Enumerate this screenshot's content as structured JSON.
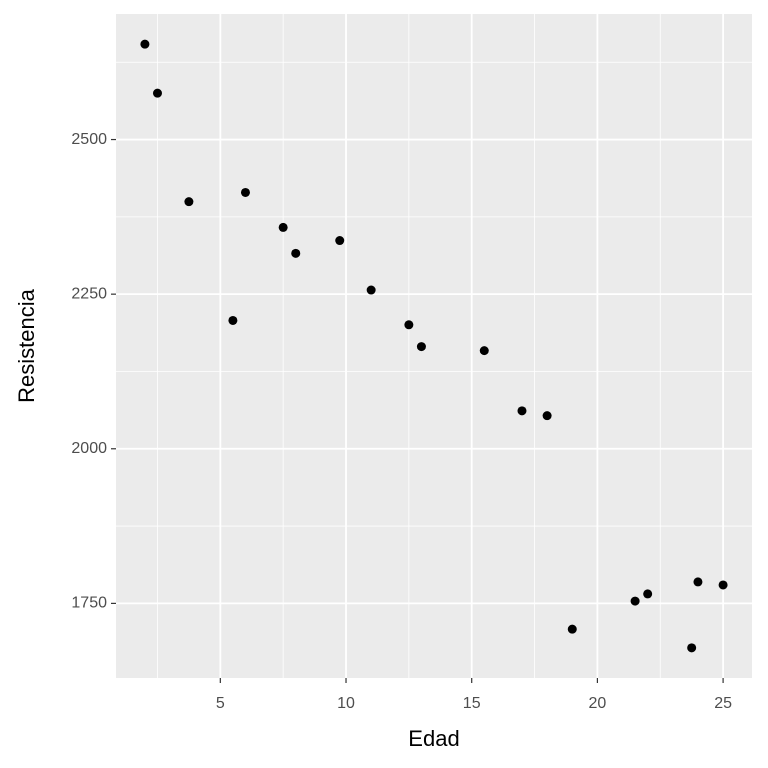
{
  "chart_data": {
    "type": "scatter",
    "x_label": "Edad",
    "y_label": "Resistencia",
    "series": [
      {
        "color": "#000000",
        "x": [
          15.5,
          23.75,
          8.0,
          17.0,
          5.5,
          19.0,
          24.0,
          2.5,
          7.5,
          11.0,
          13.0,
          3.75,
          25.0,
          9.75,
          22.0,
          18.0,
          6.0,
          12.5,
          2.0,
          21.5
        ],
        "values": [
          2158.7,
          1678.15,
          2316.0,
          2061.3,
          2207.5,
          1708.3,
          1784.7,
          2575.0,
          2357.9,
          2256.7,
          2165.2,
          2399.55,
          1779.8,
          2336.75,
          1765.3,
          2053.5,
          2414.4,
          2200.5,
          2654.2,
          1753.7
        ]
      }
    ],
    "xlim": [
      0.85,
      26.15
    ],
    "ylim": [
      1629.35,
      2703.0
    ],
    "xticks": [
      5,
      10,
      15,
      20,
      25
    ],
    "yticks": [
      1750,
      2000,
      2250,
      2500
    ],
    "xminor": [
      2.5,
      7.5,
      12.5,
      17.5,
      22.5
    ],
    "yminor": [
      1875,
      2125,
      2375,
      2625
    ],
    "grid": true,
    "panel_color": "#ebebeb"
  }
}
